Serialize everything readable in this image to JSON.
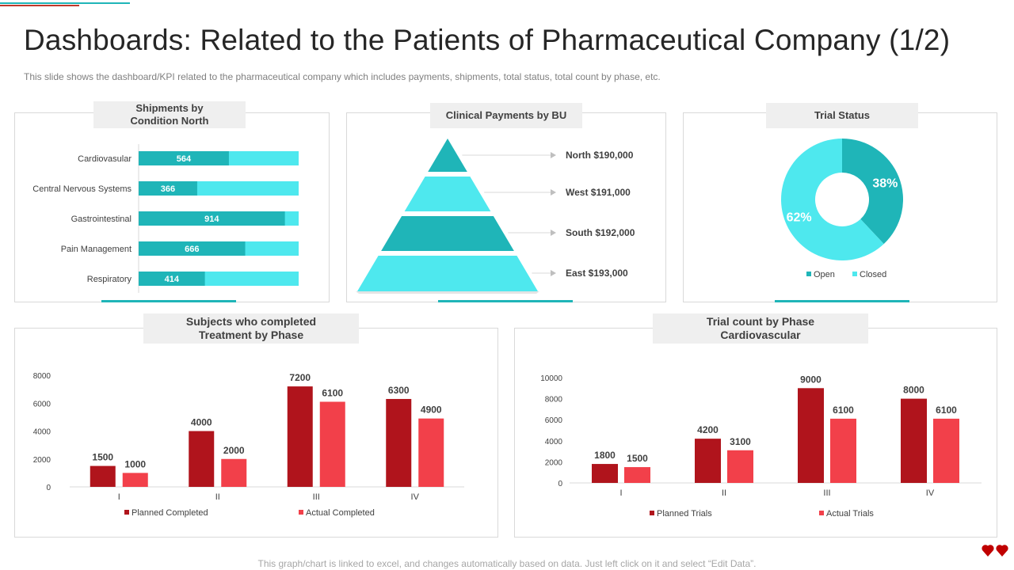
{
  "page": {
    "title": "Dashboards: Related to the Patients of Pharmaceutical Company (1/2)",
    "subtitle": "This slide shows the dashboard/KPI related to the pharmaceutical company which includes payments, shipments, total status, total count by phase, etc.",
    "footer": "This graph/chart is linked to excel, and changes automatically based on data. Just left click on it and select “Edit Data”."
  },
  "colors": {
    "teal": "#1fb5b8",
    "light_teal": "#4ee8ee",
    "dark_red": "#b0141c",
    "red": "#f2404a"
  },
  "chart_data": [
    {
      "id": "shipments",
      "type": "bar",
      "orientation": "horizontal",
      "stacked_to_max": true,
      "title": "Shipments by\nCondition North",
      "categories": [
        "Cardiovasular",
        "Central Nervous Systems",
        "Gastrointestinal",
        "Pain Management",
        "Respiratory"
      ],
      "values": [
        564,
        366,
        914,
        666,
        414
      ],
      "max": 1000
    },
    {
      "id": "payments",
      "type": "pyramid",
      "title": "Clinical Payments by BU",
      "labels": [
        "North $190,000",
        "West $191,000",
        "South $192,000",
        "East $193,000"
      ],
      "values": [
        190000,
        191000,
        192000,
        193000
      ]
    },
    {
      "id": "trial_status",
      "type": "pie",
      "style": "donut",
      "title": "Trial Status",
      "labels": [
        "Open",
        "Closed"
      ],
      "values": [
        38,
        62
      ],
      "value_labels": [
        "38%",
        "62%"
      ]
    },
    {
      "id": "subjects",
      "type": "bar",
      "title": "Subjects who completed\nTreatment by Phase",
      "categories": [
        "I",
        "II",
        "III",
        "IV"
      ],
      "series": [
        {
          "name": "Planned Completed",
          "values": [
            1500,
            4000,
            7200,
            6300
          ]
        },
        {
          "name": "Actual Completed",
          "values": [
            1000,
            2000,
            6100,
            4900
          ]
        }
      ],
      "yticks": [
        0,
        2000,
        4000,
        6000,
        8000
      ],
      "ylim": [
        0,
        8000
      ]
    },
    {
      "id": "trials",
      "type": "bar",
      "title": "Trial count by Phase\nCardiovascular",
      "categories": [
        "I",
        "II",
        "III",
        "IV"
      ],
      "series": [
        {
          "name": "Planned Trials",
          "values": [
            1800,
            4200,
            9000,
            8000
          ]
        },
        {
          "name": "Actual Trials",
          "values": [
            1500,
            3100,
            6100,
            6100
          ]
        }
      ],
      "yticks": [
        0,
        2000,
        4000,
        6000,
        8000,
        10000
      ],
      "ylim": [
        0,
        10000
      ]
    }
  ]
}
